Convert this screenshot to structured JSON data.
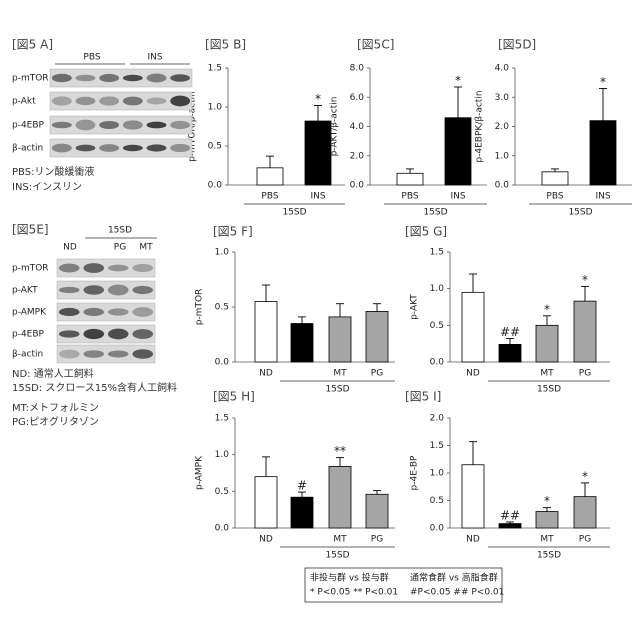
{
  "chart_data": [
    {
      "type": "bar",
      "title": "[図5 B]",
      "ylabel": "p-mTOR/β-actin",
      "group_label": "15SD",
      "categories": [
        "PBS",
        "INS"
      ],
      "values": [
        0.22,
        0.82
      ],
      "errors": [
        0.15,
        0.2
      ],
      "colors": [
        "#ffffff",
        "#000000"
      ],
      "annotations": [
        null,
        "*"
      ],
      "ylim": [
        0,
        1.5
      ],
      "yticks": [
        {
          "value": 0,
          "label": "0.0"
        },
        0.5,
        {
          "value": 1,
          "label": "1.0"
        },
        1.5
      ]
    },
    {
      "type": "bar",
      "title": "[図5C]",
      "ylabel": "p-AKT/β-actin",
      "group_label": "15SD",
      "categories": [
        "PBS",
        "INS"
      ],
      "values": [
        0.8,
        4.6
      ],
      "errors": [
        0.3,
        2.1
      ],
      "colors": [
        "#ffffff",
        "#000000"
      ],
      "annotations": [
        null,
        "*"
      ],
      "ylim": [
        0,
        8
      ],
      "yticks": [
        {
          "value": 0,
          "label": "0.0"
        },
        {
          "value": 2,
          "label": "2.0"
        },
        {
          "value": 4,
          "label": "4.0"
        },
        {
          "value": 6,
          "label": "6.0"
        },
        {
          "value": 8,
          "label": "8.0"
        }
      ]
    },
    {
      "type": "bar",
      "title": "[図5D]",
      "ylabel": "p-4EBPK/β-actin",
      "group_label": "15SD",
      "categories": [
        "PBS",
        "INS"
      ],
      "values": [
        0.45,
        2.2
      ],
      "errors": [
        0.1,
        1.1
      ],
      "colors": [
        "#ffffff",
        "#000000"
      ],
      "annotations": [
        null,
        "*"
      ],
      "ylim": [
        0,
        4
      ],
      "yticks": [
        {
          "value": 0,
          "label": "0.0"
        },
        {
          "value": 1,
          "label": "1.0"
        },
        {
          "value": 2,
          "label": "2.0"
        },
        {
          "value": 3,
          "label": "3.0"
        },
        {
          "value": 4,
          "label": "4.0"
        }
      ]
    },
    {
      "type": "bar",
      "title": "[図5 F]",
      "ylabel": "p-mTOR",
      "group_label": "15SD",
      "categories": [
        "ND",
        null,
        "MT",
        "PG"
      ],
      "values": [
        0.55,
        0.35,
        0.41,
        0.46
      ],
      "errors": [
        0.15,
        0.06,
        0.12,
        0.07
      ],
      "colors": [
        "#ffffff",
        "#000000",
        "#a6a6a6",
        "#a6a6a6"
      ],
      "annotations": [
        null,
        null,
        null,
        null
      ],
      "ylim": [
        0,
        1
      ],
      "yticks": [
        {
          "value": 0,
          "label": "0.0"
        },
        0.5,
        {
          "value": 1,
          "label": "1.0"
        }
      ]
    },
    {
      "type": "bar",
      "title": "[図5 G]",
      "ylabel": "p-AKT",
      "group_label": "15SD",
      "categories": [
        "ND",
        null,
        "MT",
        "PG"
      ],
      "values": [
        0.95,
        0.24,
        0.5,
        0.83
      ],
      "errors": [
        0.25,
        0.08,
        0.13,
        0.2
      ],
      "colors": [
        "#ffffff",
        "#000000",
        "#a6a6a6",
        "#a6a6a6"
      ],
      "annotations": [
        null,
        "##",
        "*",
        "*"
      ],
      "ylim": [
        0,
        1.5
      ],
      "yticks": [
        {
          "value": 0,
          "label": "0.0"
        },
        0.5,
        {
          "value": 1,
          "label": "1.0"
        },
        1.5
      ]
    },
    {
      "type": "bar",
      "title": "[図5 H]",
      "ylabel": "p-AMPK",
      "group_label": "15SD",
      "categories": [
        "ND",
        null,
        "MT",
        "PG"
      ],
      "values": [
        0.7,
        0.42,
        0.84,
        0.46
      ],
      "errors": [
        0.27,
        0.07,
        0.12,
        0.05
      ],
      "colors": [
        "#ffffff",
        "#000000",
        "#a6a6a6",
        "#a6a6a6"
      ],
      "annotations": [
        null,
        "#",
        "**",
        null
      ],
      "ylim": [
        0,
        1.5
      ],
      "yticks": [
        {
          "value": 0,
          "label": "0.0"
        },
        0.5,
        {
          "value": 1,
          "label": "1.0"
        },
        1.5
      ]
    },
    {
      "type": "bar",
      "title": "[図5 I]",
      "ylabel": "p-4E-BP",
      "group_label": "15SD",
      "categories": [
        "ND",
        null,
        "MT",
        "PG"
      ],
      "values": [
        1.15,
        0.08,
        0.3,
        0.57
      ],
      "errors": [
        0.42,
        0.03,
        0.07,
        0.25
      ],
      "colors": [
        "#ffffff",
        "#000000",
        "#a6a6a6",
        "#a6a6a6"
      ],
      "annotations": [
        null,
        "##",
        "*",
        "*"
      ],
      "ylim": [
        0,
        2
      ],
      "yticks": [
        {
          "value": 0,
          "label": "0.0"
        },
        0.5,
        {
          "value": 1,
          "label": "1.0"
        },
        1.5,
        {
          "value": 2,
          "label": "2.0"
        }
      ]
    }
  ],
  "blots": [
    {
      "title": "[図5 A]",
      "headers": [
        "PBS",
        "INS"
      ],
      "rows": [
        "p-mTOR",
        "p-Akt",
        "p-4EBP",
        "β-actin"
      ],
      "notes": [
        "PBS:リン酸緩衝液",
        "INS:インスリン"
      ]
    },
    {
      "title": "[図5E]",
      "group": "15SD",
      "headers": [
        "ND",
        "PG",
        "MT"
      ],
      "rows": [
        "p-mTOR",
        "p-AKT",
        "p-AMPK",
        "p-4EBP",
        "β-actin"
      ],
      "notes": [
        "ND: 通常人工飼料",
        "15SD: スクロース15%含有人工飼料",
        "MT:メトフォルミン",
        "PG:ピオグリタゾン"
      ]
    }
  ],
  "legend": {
    "lines": [
      "非投与群 vs 投与群",
      "通常食群 vs 高脂食群",
      "* P<0.05  ** P<0.01",
      "#P<0.05  ## P<0.01"
    ]
  }
}
